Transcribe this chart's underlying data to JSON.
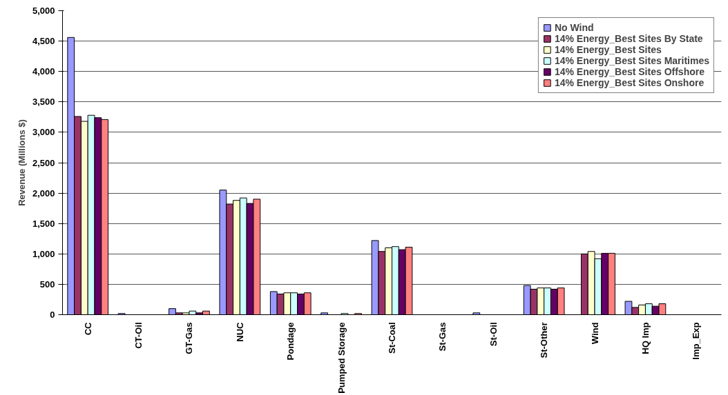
{
  "chart_data": {
    "type": "bar",
    "ylabel": "Revenue (Millions $)",
    "categories": [
      "CC",
      "CT-Oil",
      "GT-Gas",
      "NUC",
      "Pondage",
      "Pumped Storage",
      "St-Coal",
      "St-Gas",
      "St-Oil",
      "St-Other",
      "Wind",
      "HQ Imp",
      "Imp_Exp"
    ],
    "series": [
      {
        "name": "No Wind",
        "color": "#9999ff",
        "values": [
          4560,
          20,
          100,
          2050,
          380,
          30,
          1220,
          null,
          30,
          480,
          null,
          220,
          null
        ]
      },
      {
        "name": "14% Energy_Best Sites By State",
        "color": "#993366",
        "values": [
          3260,
          null,
          30,
          1820,
          340,
          null,
          1040,
          null,
          null,
          420,
          1000,
          120,
          null
        ]
      },
      {
        "name": "14% Energy_Best Sites",
        "color": "#ffffcc",
        "values": [
          3180,
          null,
          30,
          1880,
          360,
          null,
          1100,
          null,
          null,
          440,
          1040,
          160,
          null
        ]
      },
      {
        "name": "14% Energy_Best Sites Maritimes",
        "color": "#ccffff",
        "values": [
          3280,
          null,
          60,
          1920,
          360,
          20,
          1120,
          null,
          null,
          440,
          920,
          180,
          null
        ]
      },
      {
        "name": "14% Energy_Best Sites Offshore",
        "color": "#660066",
        "values": [
          3240,
          null,
          30,
          1830,
          340,
          null,
          1070,
          null,
          null,
          420,
          1010,
          140,
          null
        ]
      },
      {
        "name": "14% Energy_Best Sites Onshore",
        "color": "#ff8080",
        "values": [
          3210,
          null,
          60,
          1900,
          360,
          20,
          1110,
          null,
          null,
          440,
          1010,
          180,
          null
        ]
      }
    ],
    "ylim": [
      0,
      5000
    ],
    "yticks": [
      0,
      500,
      {
        "value": 1000,
        "label": "1,000"
      },
      {
        "value": 1500,
        "label": "1,500"
      },
      {
        "value": 2000,
        "label": "2,000"
      },
      {
        "value": 2500,
        "label": "2,500"
      },
      {
        "value": 3000,
        "label": "3,000"
      },
      {
        "value": 3500,
        "label": "3,500"
      },
      {
        "value": 4000,
        "label": "4,000"
      },
      {
        "value": 4500,
        "label": "4,500"
      },
      {
        "value": 5000,
        "label": "5,000"
      }
    ],
    "grid": "y",
    "legend": "top right"
  }
}
